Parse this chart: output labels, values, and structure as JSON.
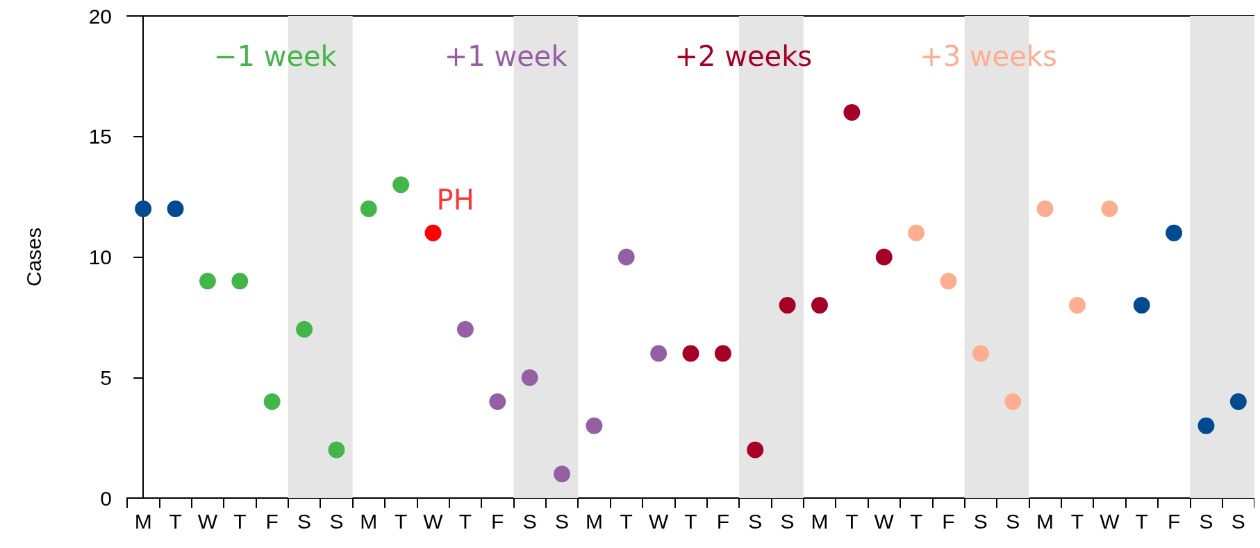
{
  "chart_data": {
    "type": "scatter",
    "ylabel": "Cases",
    "categories": [
      "M",
      "T",
      "W",
      "T",
      "F",
      "S",
      "S",
      "M",
      "T",
      "W",
      "T",
      "F",
      "S",
      "S",
      "M",
      "T",
      "W",
      "T",
      "F",
      "S",
      "S",
      "M",
      "T",
      "W",
      "T",
      "F",
      "S",
      "S",
      "M",
      "T",
      "W",
      "T",
      "F",
      "S",
      "S"
    ],
    "ylim": [
      0,
      20
    ],
    "yticks": [
      0,
      5,
      10,
      15,
      20
    ],
    "grid": false,
    "marker": "circle",
    "legend": "top",
    "series": [
      {
        "color": "#004a8f",
        "values": [
          12,
          12,
          null,
          null,
          null,
          null,
          null,
          null,
          null,
          null,
          null,
          null,
          null,
          null,
          null,
          null,
          null,
          null,
          null,
          null,
          null,
          null,
          null,
          null,
          null,
          null,
          null,
          null,
          null,
          null,
          null,
          8,
          11,
          3,
          4
        ]
      },
      {
        "name": "−1 week",
        "color": "#44b549",
        "values": [
          null,
          null,
          9,
          9,
          4,
          7,
          2,
          12,
          13,
          null,
          null,
          null,
          null,
          null,
          null,
          null,
          null,
          null,
          null,
          null,
          null,
          null,
          null,
          null,
          null,
          null,
          null,
          null,
          null,
          null,
          null,
          null,
          null,
          null,
          null
        ]
      },
      {
        "color": "#ff0000",
        "values": [
          null,
          null,
          null,
          null,
          null,
          null,
          null,
          null,
          null,
          11,
          null,
          null,
          null,
          null,
          null,
          null,
          null,
          null,
          null,
          null,
          null,
          null,
          null,
          null,
          null,
          null,
          null,
          null,
          null,
          null,
          null,
          null,
          null,
          null,
          null
        ]
      },
      {
        "name": "+1 week",
        "color": "#9460a3",
        "values": [
          null,
          null,
          null,
          null,
          null,
          null,
          null,
          null,
          null,
          null,
          7,
          4,
          5,
          1,
          3,
          10,
          6,
          null,
          null,
          null,
          null,
          null,
          null,
          null,
          null,
          null,
          null,
          null,
          null,
          null,
          null,
          null,
          null,
          null,
          null
        ]
      },
      {
        "name": "+2 weeks",
        "color": "#a50026",
        "values": [
          null,
          null,
          null,
          null,
          null,
          null,
          null,
          null,
          null,
          null,
          null,
          null,
          null,
          null,
          null,
          null,
          null,
          6,
          6,
          2,
          8,
          8,
          16,
          10,
          null,
          null,
          null,
          null,
          null,
          null,
          null,
          null,
          null,
          null,
          null
        ]
      },
      {
        "name": "+3 weeks",
        "color": "#fdae91",
        "values": [
          null,
          null,
          null,
          null,
          null,
          null,
          null,
          null,
          null,
          null,
          null,
          null,
          null,
          null,
          null,
          null,
          null,
          null,
          null,
          null,
          null,
          null,
          null,
          null,
          11,
          9,
          6,
          4,
          12,
          8,
          12,
          null,
          null,
          null,
          null
        ]
      }
    ],
    "annotations": [
      "PH"
    ]
  }
}
